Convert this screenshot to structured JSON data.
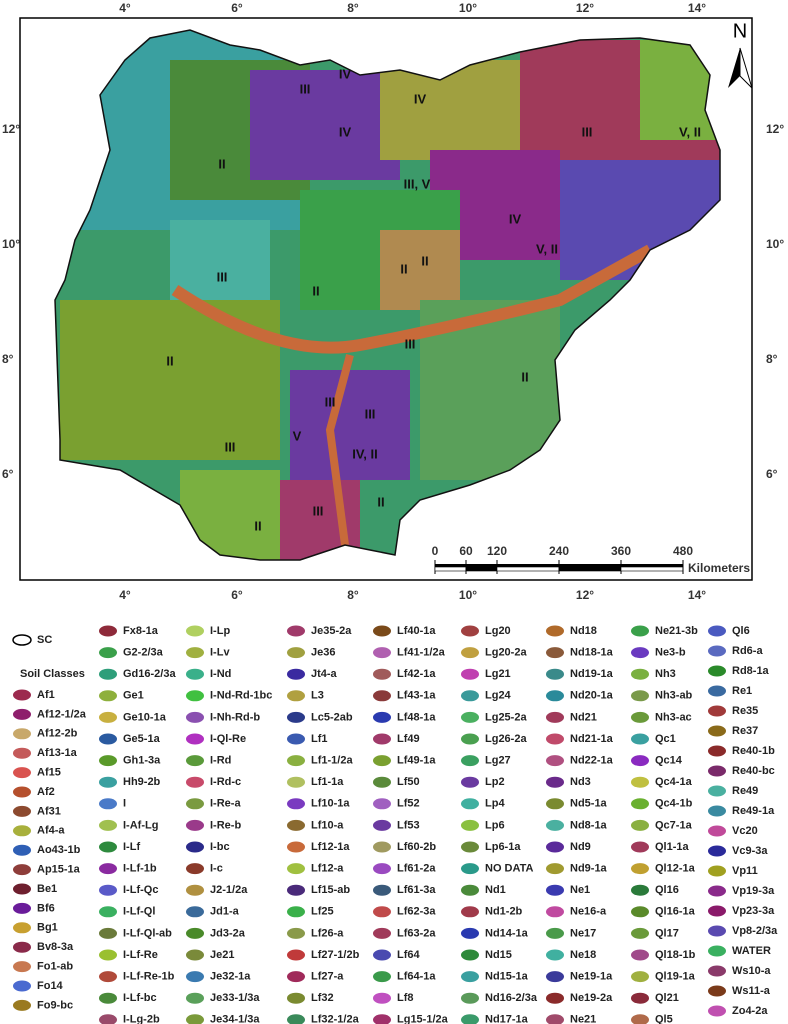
{
  "map": {
    "north": "N",
    "lon_labels": [
      "4°",
      "6°",
      "8°",
      "10°",
      "12°",
      "14°"
    ],
    "lat_labels": [
      "12°",
      "10°",
      "8°",
      "6°"
    ],
    "region_labels": [
      "IV",
      "III",
      "IV",
      "III",
      "V, II",
      "IV",
      "II",
      "III, V",
      "IV",
      "V, II",
      "III",
      "II",
      "II",
      "II",
      "III",
      "II",
      "II",
      "III",
      "III",
      "IV, II",
      "V",
      "III",
      "II",
      "III",
      "II"
    ],
    "scale": {
      "ticks": [
        0,
        60,
        120,
        240,
        360,
        480
      ],
      "unit": "Kilometers"
    }
  },
  "legend": {
    "outline_label": "SC",
    "title": "Soil Classes",
    "columns": [
      [
        {
          "label": "Af1",
          "color": "#9c2a4e"
        },
        {
          "label": "Af12-1/2a",
          "color": "#8e1f6c"
        },
        {
          "label": "Af12-2b",
          "color": "#c8a86a"
        },
        {
          "label": "Af13-1a",
          "color": "#c45a5a"
        },
        {
          "label": "Af15",
          "color": "#d9534f"
        },
        {
          "label": "Af2",
          "color": "#b5502d"
        },
        {
          "label": "Af31",
          "color": "#8c4a2f"
        },
        {
          "label": "Af4-a",
          "color": "#a8b03c"
        },
        {
          "label": "Ao43-1b",
          "color": "#2f5fb5"
        },
        {
          "label": "Ap15-1a",
          "color": "#8e3d3a"
        },
        {
          "label": "Be1",
          "color": "#6e1f2e"
        },
        {
          "label": "Bf6",
          "color": "#6a1c9a"
        },
        {
          "label": "Bg1",
          "color": "#c8a030"
        },
        {
          "label": "Bv8-3a",
          "color": "#8a2a4a"
        },
        {
          "label": "Fo1-ab",
          "color": "#c87850"
        },
        {
          "label": "Fo14",
          "color": "#4a6ad0"
        },
        {
          "label": "Fo9-bc",
          "color": "#9a7a20"
        }
      ],
      [
        {
          "label": "Fx8-1a",
          "color": "#8e2a3a"
        },
        {
          "label": "G2-2/3a",
          "color": "#3aa04a"
        },
        {
          "label": "Gd16-2/3a",
          "color": "#2e9e7a"
        },
        {
          "label": "Ge1",
          "color": "#8eb03c"
        },
        {
          "label": "Ge10-1a",
          "color": "#c8b040"
        },
        {
          "label": "Ge5-1a",
          "color": "#2a5aa0"
        },
        {
          "label": "Gh1-3a",
          "color": "#5a9a2a"
        },
        {
          "label": "Hh9-2b",
          "color": "#3aa0a0"
        },
        {
          "label": "I",
          "color": "#4a7ac8"
        },
        {
          "label": "I-Af-Lg",
          "color": "#a0c050"
        },
        {
          "label": "I-Lf",
          "color": "#2e8a3e"
        },
        {
          "label": "I-Lf-1b",
          "color": "#8a2aa0"
        },
        {
          "label": "I-Lf-Qc",
          "color": "#5a5ac8"
        },
        {
          "label": "I-Lf-Ql",
          "color": "#3ab060"
        },
        {
          "label": "I-Lf-Ql-ab",
          "color": "#6a7a3a"
        },
        {
          "label": "I-Lf-Re",
          "color": "#9ac030"
        },
        {
          "label": "I-Lf-Re-1b",
          "color": "#b04a3a"
        },
        {
          "label": "I-Lf-bc",
          "color": "#4a8a3a"
        },
        {
          "label": "I-Lg-2b",
          "color": "#9a4a6a"
        }
      ],
      [
        {
          "label": "I-Lp",
          "color": "#b0d060"
        },
        {
          "label": "I-Lv",
          "color": "#a0b040"
        },
        {
          "label": "I-Nd",
          "color": "#3ab08a"
        },
        {
          "label": "I-Nd-Rd-1bc",
          "color": "#40c040"
        },
        {
          "label": "I-Nh-Rd-b",
          "color": "#8a50b0"
        },
        {
          "label": "I-Ql-Re",
          "color": "#b030c0"
        },
        {
          "label": "I-Rd",
          "color": "#5a9a3a"
        },
        {
          "label": "I-Rd-c",
          "color": "#c84a6a"
        },
        {
          "label": "I-Re-a",
          "color": "#7a9a40"
        },
        {
          "label": "I-Re-b",
          "color": "#9a3a8a"
        },
        {
          "label": "I-bc",
          "color": "#2a2a8a"
        },
        {
          "label": "I-c",
          "color": "#8a3a2a"
        },
        {
          "label": "J2-1/2a",
          "color": "#b09040"
        },
        {
          "label": "Jd1-a",
          "color": "#3a6a9a"
        },
        {
          "label": "Jd3-2a",
          "color": "#4a8a2a"
        },
        {
          "label": "Je21",
          "color": "#7a8a3a"
        },
        {
          "label": "Je32-1a",
          "color": "#3a7ab0"
        },
        {
          "label": "Je33-1/3a",
          "color": "#5aa05a"
        },
        {
          "label": "Je34-1/3a",
          "color": "#7a9a3a"
        }
      ],
      [
        {
          "label": "Je35-2a",
          "color": "#a03a6a"
        },
        {
          "label": "Je36",
          "color": "#a0a040"
        },
        {
          "label": "Jt4-a",
          "color": "#3a2aa0"
        },
        {
          "label": "L3",
          "color": "#b0a040"
        },
        {
          "label": "Lc5-2ab",
          "color": "#2a3a8a"
        },
        {
          "label": "Lf1",
          "color": "#3a5ab0"
        },
        {
          "label": "Lf1-1/2a",
          "color": "#8ab040"
        },
        {
          "label": "Lf1-1a",
          "color": "#b0c060"
        },
        {
          "label": "Lf10-1a",
          "color": "#7a3ac0"
        },
        {
          "label": "Lf10-a",
          "color": "#8a6a30"
        },
        {
          "label": "Lf12-1a",
          "color": "#c86a3a"
        },
        {
          "label": "Lf12-a",
          "color": "#a0c040"
        },
        {
          "label": "Lf15-ab",
          "color": "#4a2a7a"
        },
        {
          "label": "Lf25",
          "color": "#3ab04a"
        },
        {
          "label": "Lf26-a",
          "color": "#8a9a4a"
        },
        {
          "label": "Lf27-1/2b",
          "color": "#c03a3a"
        },
        {
          "label": "Lf27-a",
          "color": "#a02a5a"
        },
        {
          "label": "Lf32",
          "color": "#7a8a30"
        },
        {
          "label": "Lf32-1/2a",
          "color": "#3a8a5a"
        }
      ],
      [
        {
          "label": "Lf40-1a",
          "color": "#7a4a1a"
        },
        {
          "label": "Lf41-1/2a",
          "color": "#b060b0"
        },
        {
          "label": "Lf42-1a",
          "color": "#a05a5a"
        },
        {
          "label": "Lf43-1a",
          "color": "#8a3a3a"
        },
        {
          "label": "Lf48-1a",
          "color": "#2a3ab0"
        },
        {
          "label": "Lf49",
          "color": "#a03a6a"
        },
        {
          "label": "Lf49-1a",
          "color": "#7aa030"
        },
        {
          "label": "Lf50",
          "color": "#5a8a3a"
        },
        {
          "label": "Lf52",
          "color": "#a060c0"
        },
        {
          "label": "Lf53",
          "color": "#6a3aa0"
        },
        {
          "label": "Lf60-2b",
          "color": "#a09a60"
        },
        {
          "label": "Lf61-2a",
          "color": "#9a4ac0"
        },
        {
          "label": "Lf61-3a",
          "color": "#3a5a7a"
        },
        {
          "label": "Lf62-3a",
          "color": "#c04a4a"
        },
        {
          "label": "Lf63-2a",
          "color": "#a03a5a"
        },
        {
          "label": "Lf64",
          "color": "#4a4ab0"
        },
        {
          "label": "Lf64-1a",
          "color": "#3a9a4a"
        },
        {
          "label": "Lf8",
          "color": "#c050c0"
        },
        {
          "label": "Lg15-1/2a",
          "color": "#a0306a"
        }
      ],
      [
        {
          "label": "Lg20",
          "color": "#a04040"
        },
        {
          "label": "Lg20-2a",
          "color": "#c0a040"
        },
        {
          "label": "Lg21",
          "color": "#c040b0"
        },
        {
          "label": "Lg24",
          "color": "#3a9a9a"
        },
        {
          "label": "Lg25-2a",
          "color": "#4ab060"
        },
        {
          "label": "Lg26-2a",
          "color": "#4aa050"
        },
        {
          "label": "Lg27",
          "color": "#3aa060"
        },
        {
          "label": "Lp2",
          "color": "#6a3aa0"
        },
        {
          "label": "Lp4",
          "color": "#40b0a0"
        },
        {
          "label": "Lp6",
          "color": "#8ac040"
        },
        {
          "label": "Lp6-1a",
          "color": "#6a8a3a"
        },
        {
          "label": "NO DATA",
          "color": "#2a9a8a"
        },
        {
          "label": "Nd1",
          "color": "#4a8a3a"
        },
        {
          "label": "Nd1-2b",
          "color": "#a03a4a"
        },
        {
          "label": "Nd14-1a",
          "color": "#2a3ab0"
        },
        {
          "label": "Nd15",
          "color": "#2e8a3a"
        },
        {
          "label": "Nd15-1a",
          "color": "#3aa0a0"
        },
        {
          "label": "Nd16-2/3a",
          "color": "#5a9a5a"
        },
        {
          "label": "Nd17-1a",
          "color": "#3a9a6a"
        }
      ],
      [
        {
          "label": "Nd18",
          "color": "#b06a2a"
        },
        {
          "label": "Nd18-1a",
          "color": "#8a5a3a"
        },
        {
          "label": "Nd19-1a",
          "color": "#3a8a8a"
        },
        {
          "label": "Nd20-1a",
          "color": "#2a8a9a"
        },
        {
          "label": "Nd21",
          "color": "#a03a5a"
        },
        {
          "label": "Nd21-1a",
          "color": "#c04a6a"
        },
        {
          "label": "Nd22-1a",
          "color": "#b05080"
        },
        {
          "label": "Nd3",
          "color": "#6a2a8a"
        },
        {
          "label": "Nd5-1a",
          "color": "#7a8a30"
        },
        {
          "label": "Nd8-1a",
          "color": "#4ab0a0"
        },
        {
          "label": "Nd9",
          "color": "#5a2a9a"
        },
        {
          "label": "Nd9-1a",
          "color": "#a09a30"
        },
        {
          "label": "Ne1",
          "color": "#3a3ab0"
        },
        {
          "label": "Ne16-a",
          "color": "#c04aa0"
        },
        {
          "label": "Ne17",
          "color": "#4a9a4a"
        },
        {
          "label": "Ne18",
          "color": "#40b0a0"
        },
        {
          "label": "Ne19-1a",
          "color": "#3a3a9a"
        },
        {
          "label": "Ne19-2a",
          "color": "#8a2a2a"
        },
        {
          "label": "Ne21",
          "color": "#a04a6a"
        }
      ],
      [
        {
          "label": "Ne21-3b",
          "color": "#3aa04a"
        },
        {
          "label": "Ne3-b",
          "color": "#6a3ac0"
        },
        {
          "label": "Nh3",
          "color": "#7ab040"
        },
        {
          "label": "Nh3-ab",
          "color": "#7a9a4a"
        },
        {
          "label": "Nh3-ac",
          "color": "#6a9a3a"
        },
        {
          "label": "Qc1",
          "color": "#3aa0a0"
        },
        {
          "label": "Qc14",
          "color": "#8a2ac0"
        },
        {
          "label": "Qc4-1a",
          "color": "#c0c040"
        },
        {
          "label": "Qc4-1b",
          "color": "#6ab030"
        },
        {
          "label": "Qc7-1a",
          "color": "#8ab040"
        },
        {
          "label": "Ql1-1a",
          "color": "#a03a5a"
        },
        {
          "label": "Ql12-1a",
          "color": "#c0a030"
        },
        {
          "label": "Ql16",
          "color": "#2a7a3a"
        },
        {
          "label": "Ql16-1a",
          "color": "#5a8a2a"
        },
        {
          "label": "Ql17",
          "color": "#6a9a3a"
        },
        {
          "label": "Ql18-1b",
          "color": "#a04a8a"
        },
        {
          "label": "Ql19-1a",
          "color": "#a0b040"
        },
        {
          "label": "Ql21",
          "color": "#8a2a3a"
        },
        {
          "label": "Ql5",
          "color": "#b06a4a"
        }
      ],
      [
        {
          "label": "Ql6",
          "color": "#4a5ac0"
        },
        {
          "label": "Rd6-a",
          "color": "#5a6ac0"
        },
        {
          "label": "Rd8-1a",
          "color": "#2a8a2a"
        },
        {
          "label": "Re1",
          "color": "#3a6aa0"
        },
        {
          "label": "Re35",
          "color": "#a03a3a"
        },
        {
          "label": "Re37",
          "color": "#8a6a1a"
        },
        {
          "label": "Re40-1b",
          "color": "#8a2a2a"
        },
        {
          "label": "Re40-bc",
          "color": "#7a2a6a"
        },
        {
          "label": "Re49",
          "color": "#4ab0a0"
        },
        {
          "label": "Re49-1a",
          "color": "#3a8aa0"
        },
        {
          "label": "Vc20",
          "color": "#c04a9a"
        },
        {
          "label": "Vc9-3a",
          "color": "#2a2a9a"
        },
        {
          "label": "Vp11",
          "color": "#a0a020"
        },
        {
          "label": "Vp19-3a",
          "color": "#8a2a8a"
        },
        {
          "label": "Vp23-3a",
          "color": "#8a1a6a"
        },
        {
          "label": "Vp8-2/3a",
          "color": "#5a4ab0"
        },
        {
          "label": "WATER",
          "color": "#3ab060"
        },
        {
          "label": "Ws10-a",
          "color": "#8a3a6a"
        },
        {
          "label": "Ws11-a",
          "color": "#7a3a1a"
        },
        {
          "label": "Zo4-2a",
          "color": "#c050b0"
        }
      ]
    ]
  }
}
